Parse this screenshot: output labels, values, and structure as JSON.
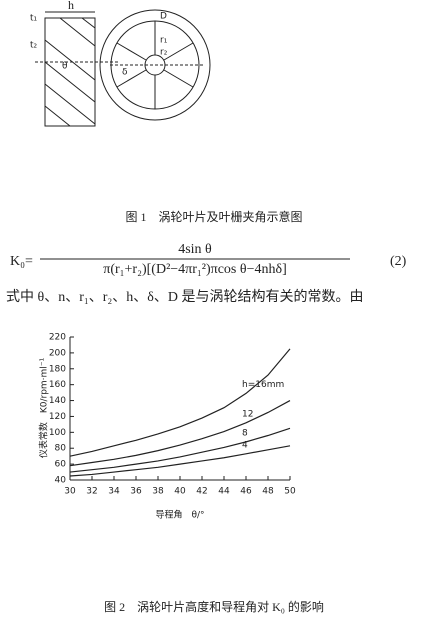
{
  "figure1": {
    "labels": [
      "h",
      "t₁",
      "t₂",
      "θ",
      "D",
      "r₁",
      "r₂",
      "δ"
    ],
    "caption": "图 1　涡轮叶片及叶栅夹角示意图"
  },
  "formula": {
    "lhs": "K₀=",
    "numerator": "4sin θ",
    "denominator": "π(r₁+r₂)[(D²−4πr₁²)πcos θ−4nhδ]",
    "number": "(2)"
  },
  "paragraph": "式中 θ、n、r₁、r₂、h、δ、D 是与涡轮结构有关的常数。由",
  "chart_data": {
    "type": "line",
    "x_label": "导程角　θ/°",
    "y_label": "仪表常数　K0/rpm·ml⁻¹",
    "x": [
      30,
      32,
      34,
      36,
      38,
      40,
      42,
      44,
      46,
      48,
      50
    ],
    "series": [
      {
        "name": "h=16mm",
        "color": "#222222",
        "values": [
          70,
          76,
          83,
          90,
          98,
          107,
          118,
          131,
          149,
          172,
          205
        ]
      },
      {
        "name": "12",
        "color": "#222222",
        "values": [
          58,
          62,
          66,
          71,
          77,
          84,
          92,
          101,
          112,
          125,
          140
        ]
      },
      {
        "name": "8",
        "color": "#222222",
        "values": [
          50,
          53,
          56,
          60,
          64,
          69,
          75,
          81,
          88,
          96,
          105
        ]
      },
      {
        "name": "4",
        "color": "#222222",
        "values": [
          45,
          47,
          50,
          53,
          56,
          60,
          64,
          68,
          73,
          78,
          83
        ]
      }
    ],
    "xlim": [
      30,
      50
    ],
    "xticks": [
      30,
      32,
      34,
      36,
      38,
      40,
      42,
      44,
      46,
      48,
      50
    ],
    "ylim": [
      40,
      220
    ],
    "yticks": [
      40,
      60,
      80,
      100,
      120,
      140,
      160,
      180,
      200,
      220
    ],
    "grid": false,
    "caption": "图 2　涡轮叶片高度和导程角对 K₀ 的影响"
  }
}
